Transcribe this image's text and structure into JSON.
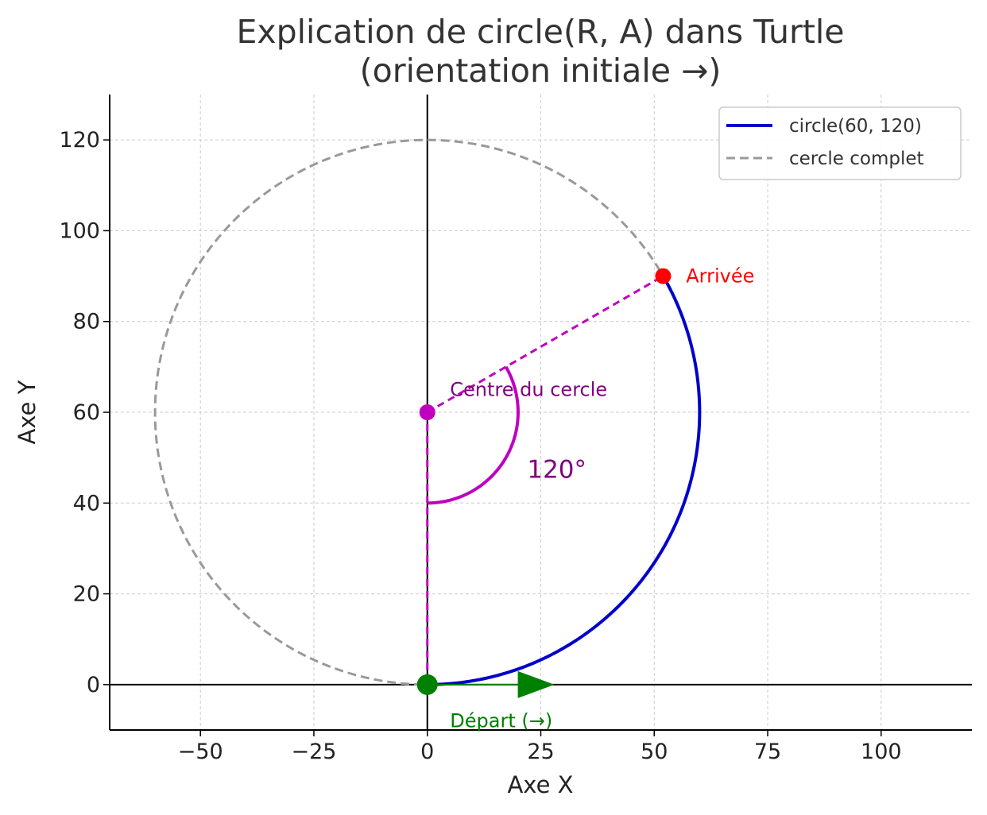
{
  "chart_data": {
    "type": "line",
    "title": "Explication de circle(R, A) dans Turtle",
    "subtitle": "(orientation initiale →)",
    "xlabel": "Axe X",
    "ylabel": "Axe Y",
    "xlim": [
      -70,
      120
    ],
    "ylim": [
      -10,
      130
    ],
    "xticks": [
      -50,
      -25,
      0,
      25,
      50,
      75,
      100
    ],
    "xtick_labels": [
      "−50",
      "−25",
      "0",
      "25",
      "50",
      "75",
      "100"
    ],
    "yticks": [
      0,
      20,
      40,
      60,
      80,
      100,
      120
    ],
    "ytick_labels": [
      "0",
      "20",
      "40",
      "60",
      "80",
      "100",
      "120"
    ],
    "grid": true,
    "legend_position": "top-right",
    "radius": 60,
    "angle_deg": 120,
    "center": [
      0,
      60
    ],
    "series": [
      {
        "name": "circle(60, 120)",
        "kind": "arc",
        "from_deg": -90,
        "to_deg": 30,
        "color": "#0000cc",
        "style": "solid"
      },
      {
        "name": "cercle complet",
        "kind": "circle",
        "color": "#999999",
        "style": "dashed"
      }
    ],
    "points": [
      {
        "name": "start",
        "x": 0,
        "y": 0,
        "color": "#008000"
      },
      {
        "name": "end",
        "x": 51.96,
        "y": 90,
        "color": "#ff0000"
      },
      {
        "name": "center",
        "x": 0,
        "y": 60,
        "color": "#c000c0"
      }
    ],
    "radii": [
      {
        "from": [
          0,
          60
        ],
        "to": [
          0,
          0
        ],
        "color": "#c000c0"
      },
      {
        "from": [
          0,
          60
        ],
        "to": [
          51.96,
          90
        ],
        "color": "#c000c0"
      }
    ],
    "angle_marker": {
      "center": [
        0,
        60
      ],
      "radius": 20,
      "from_deg": -90,
      "to_deg": 30,
      "color": "#c000c0"
    },
    "direction_arrow": {
      "from": [
        0,
        0
      ],
      "to": [
        28,
        0
      ],
      "color": "#008000"
    },
    "annotations": [
      {
        "key": "end",
        "text": "Arrivée",
        "x": 57,
        "y": 90,
        "color": "#ff0000"
      },
      {
        "key": "center",
        "text": "Centre du cercle",
        "x": 5,
        "y": 65,
        "color": "#800080"
      },
      {
        "key": "angle",
        "text": "120°",
        "x": 22,
        "y": 47,
        "color": "#800080"
      },
      {
        "key": "start",
        "text": "Départ (→)",
        "x": 5,
        "y": -8,
        "color": "#008000"
      }
    ]
  }
}
